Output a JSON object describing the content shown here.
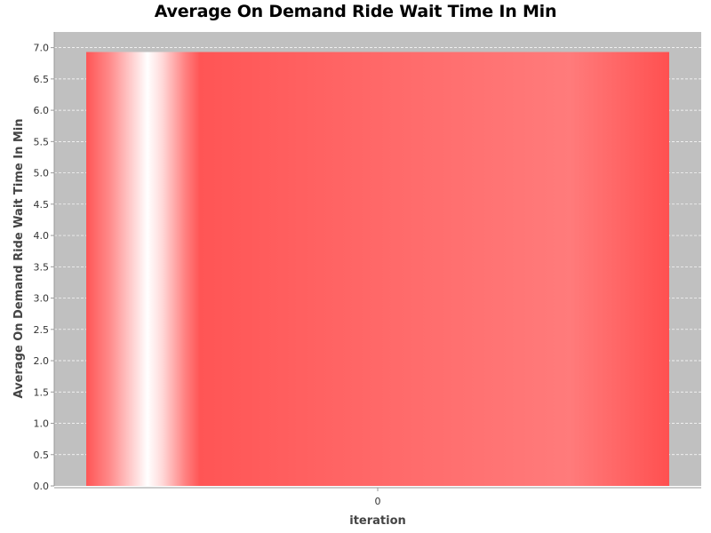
{
  "chart_data": {
    "type": "bar",
    "title": "Average On Demand Ride Wait Time In Min",
    "xlabel": "iteration",
    "ylabel": "Average On Demand Ride Wait Time In Min",
    "categories": [
      "0"
    ],
    "series": [
      {
        "values": [
          6.93
        ]
      }
    ],
    "ylim": [
      0,
      7.25
    ],
    "yticks": [
      0.0,
      0.5,
      1.0,
      1.5,
      2.0,
      2.5,
      3.0,
      3.5,
      4.0,
      4.5,
      5.0,
      5.5,
      6.0,
      6.5,
      7.0
    ],
    "ytick_labels": [
      "0.0",
      "0.5",
      "1.0",
      "1.5",
      "2.0",
      "2.5",
      "3.0",
      "3.5",
      "4.0",
      "4.5",
      "5.0",
      "5.5",
      "6.0",
      "6.5",
      "7.0"
    ],
    "grid": true,
    "colors": {
      "plot_background": "#c0c0c0",
      "bar": "#ff5555",
      "bar_highlight": "#ffffff",
      "grid": "#ffffff"
    }
  }
}
